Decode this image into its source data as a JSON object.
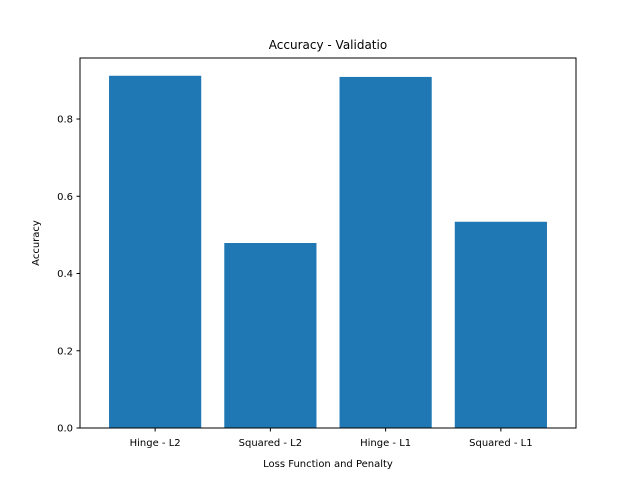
{
  "chart_data": {
    "type": "bar",
    "title": "Accuracy - Validatio",
    "xlabel": "Loss Function and Penalty",
    "ylabel": "Accuracy",
    "categories": [
      "Hinge - L2",
      "Squared - L2",
      "Hinge - L1",
      "Squared - L1"
    ],
    "values": [
      0.912,
      0.479,
      0.909,
      0.534
    ],
    "ylim": [
      0,
      0.958
    ],
    "yticks": [
      0.0,
      0.2,
      0.4,
      0.6,
      0.8
    ],
    "ytick_labels": [
      "0.0",
      "0.2",
      "0.4",
      "0.6",
      "0.8"
    ],
    "bar_color": "#1f77b4",
    "grid": false,
    "legend": "none"
  }
}
